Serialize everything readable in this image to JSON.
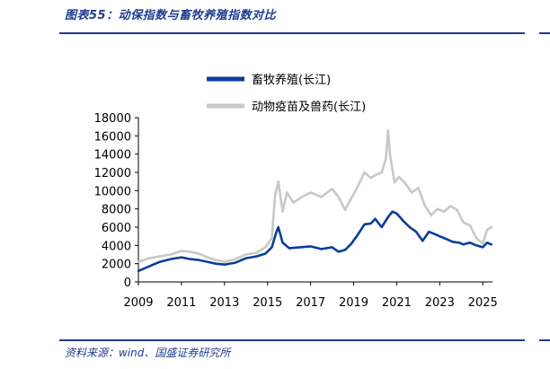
{
  "header": {
    "caption": "图表55：动保指数与畜牧养殖指数对比"
  },
  "footer": {
    "source": "资料来源：wind、国盛证券研究所"
  },
  "colors": {
    "accent": "#1f3b8f",
    "series_primary": "#0a3d99",
    "series_secondary": "#c8c8c8"
  },
  "chart_data": {
    "type": "line",
    "title": "",
    "xlabel": "",
    "ylabel": "",
    "ylim": [
      0,
      18000
    ],
    "xlim": [
      2009,
      2025.45
    ],
    "yticks": [
      0,
      2000,
      4000,
      6000,
      8000,
      10000,
      12000,
      14000,
      16000,
      18000
    ],
    "ytick_labels": [
      "0",
      "2000",
      "4000",
      "6000",
      "8000",
      "10000",
      "12000",
      "14000",
      "16000",
      "18000"
    ],
    "xticks": [
      2009,
      2011,
      2013,
      2015,
      2017,
      2019,
      2021,
      2023,
      2025
    ],
    "xtick_labels": [
      "2009",
      "2011",
      "2013",
      "2015",
      "2017",
      "2019",
      "2021",
      "2023",
      "2025"
    ],
    "grid": false,
    "legend": "top-center",
    "series": [
      {
        "name": "畜牧养殖(长江)",
        "color": "#0a3d99",
        "x": [
          2009.0,
          2009.5,
          2010.0,
          2010.5,
          2011.0,
          2011.4,
          2011.8,
          2012.2,
          2012.6,
          2013.0,
          2013.5,
          2014.0,
          2014.5,
          2014.9,
          2015.2,
          2015.4,
          2015.5,
          2015.7,
          2016.0,
          2016.5,
          2017.0,
          2017.5,
          2018.0,
          2018.3,
          2018.6,
          2018.9,
          2019.2,
          2019.5,
          2019.8,
          2020.0,
          2020.3,
          2020.6,
          2020.8,
          2021.0,
          2021.3,
          2021.6,
          2021.9,
          2022.2,
          2022.5,
          2022.8,
          2023.0,
          2023.3,
          2023.6,
          2023.9,
          2024.1,
          2024.4,
          2024.7,
          2025.0,
          2025.2,
          2025.4
        ],
        "y": [
          1200,
          1700,
          2200,
          2500,
          2700,
          2500,
          2400,
          2200,
          2000,
          1900,
          2100,
          2600,
          2800,
          3100,
          3800,
          5400,
          6000,
          4300,
          3700,
          3800,
          3900,
          3600,
          3800,
          3300,
          3500,
          4200,
          5200,
          6300,
          6400,
          6900,
          6000,
          7100,
          7700,
          7500,
          6700,
          6000,
          5500,
          4500,
          5500,
          5200,
          5000,
          4700,
          4400,
          4300,
          4100,
          4300,
          4000,
          3800,
          4300,
          4100
        ]
      },
      {
        "name": "动物疫苗及兽药(长江)",
        "color": "#c8c8c8",
        "x": [
          2009.0,
          2009.5,
          2010.0,
          2010.5,
          2011.0,
          2011.4,
          2011.8,
          2012.2,
          2012.6,
          2013.0,
          2013.5,
          2014.0,
          2014.5,
          2014.9,
          2015.2,
          2015.35,
          2015.5,
          2015.7,
          2015.9,
          2016.2,
          2016.6,
          2017.0,
          2017.5,
          2018.0,
          2018.3,
          2018.6,
          2018.9,
          2019.2,
          2019.5,
          2019.8,
          2020.0,
          2020.3,
          2020.5,
          2020.6,
          2020.7,
          2020.9,
          2021.1,
          2021.4,
          2021.7,
          2022.0,
          2022.3,
          2022.6,
          2022.9,
          2023.2,
          2023.5,
          2023.8,
          2024.1,
          2024.4,
          2024.7,
          2025.0,
          2025.2,
          2025.4
        ],
        "y": [
          2200,
          2600,
          2800,
          3000,
          3400,
          3300,
          3100,
          2700,
          2400,
          2200,
          2500,
          3000,
          3200,
          3800,
          4800,
          9500,
          11000,
          7700,
          9800,
          8700,
          9300,
          9800,
          9300,
          10200,
          9300,
          7900,
          9200,
          10500,
          12000,
          11400,
          11700,
          12000,
          13500,
          16600,
          13800,
          10900,
          11500,
          10800,
          9800,
          10300,
          8400,
          7300,
          8000,
          7700,
          8300,
          7900,
          6500,
          6200,
          4800,
          4200,
          5700,
          6000
        ]
      }
    ]
  }
}
